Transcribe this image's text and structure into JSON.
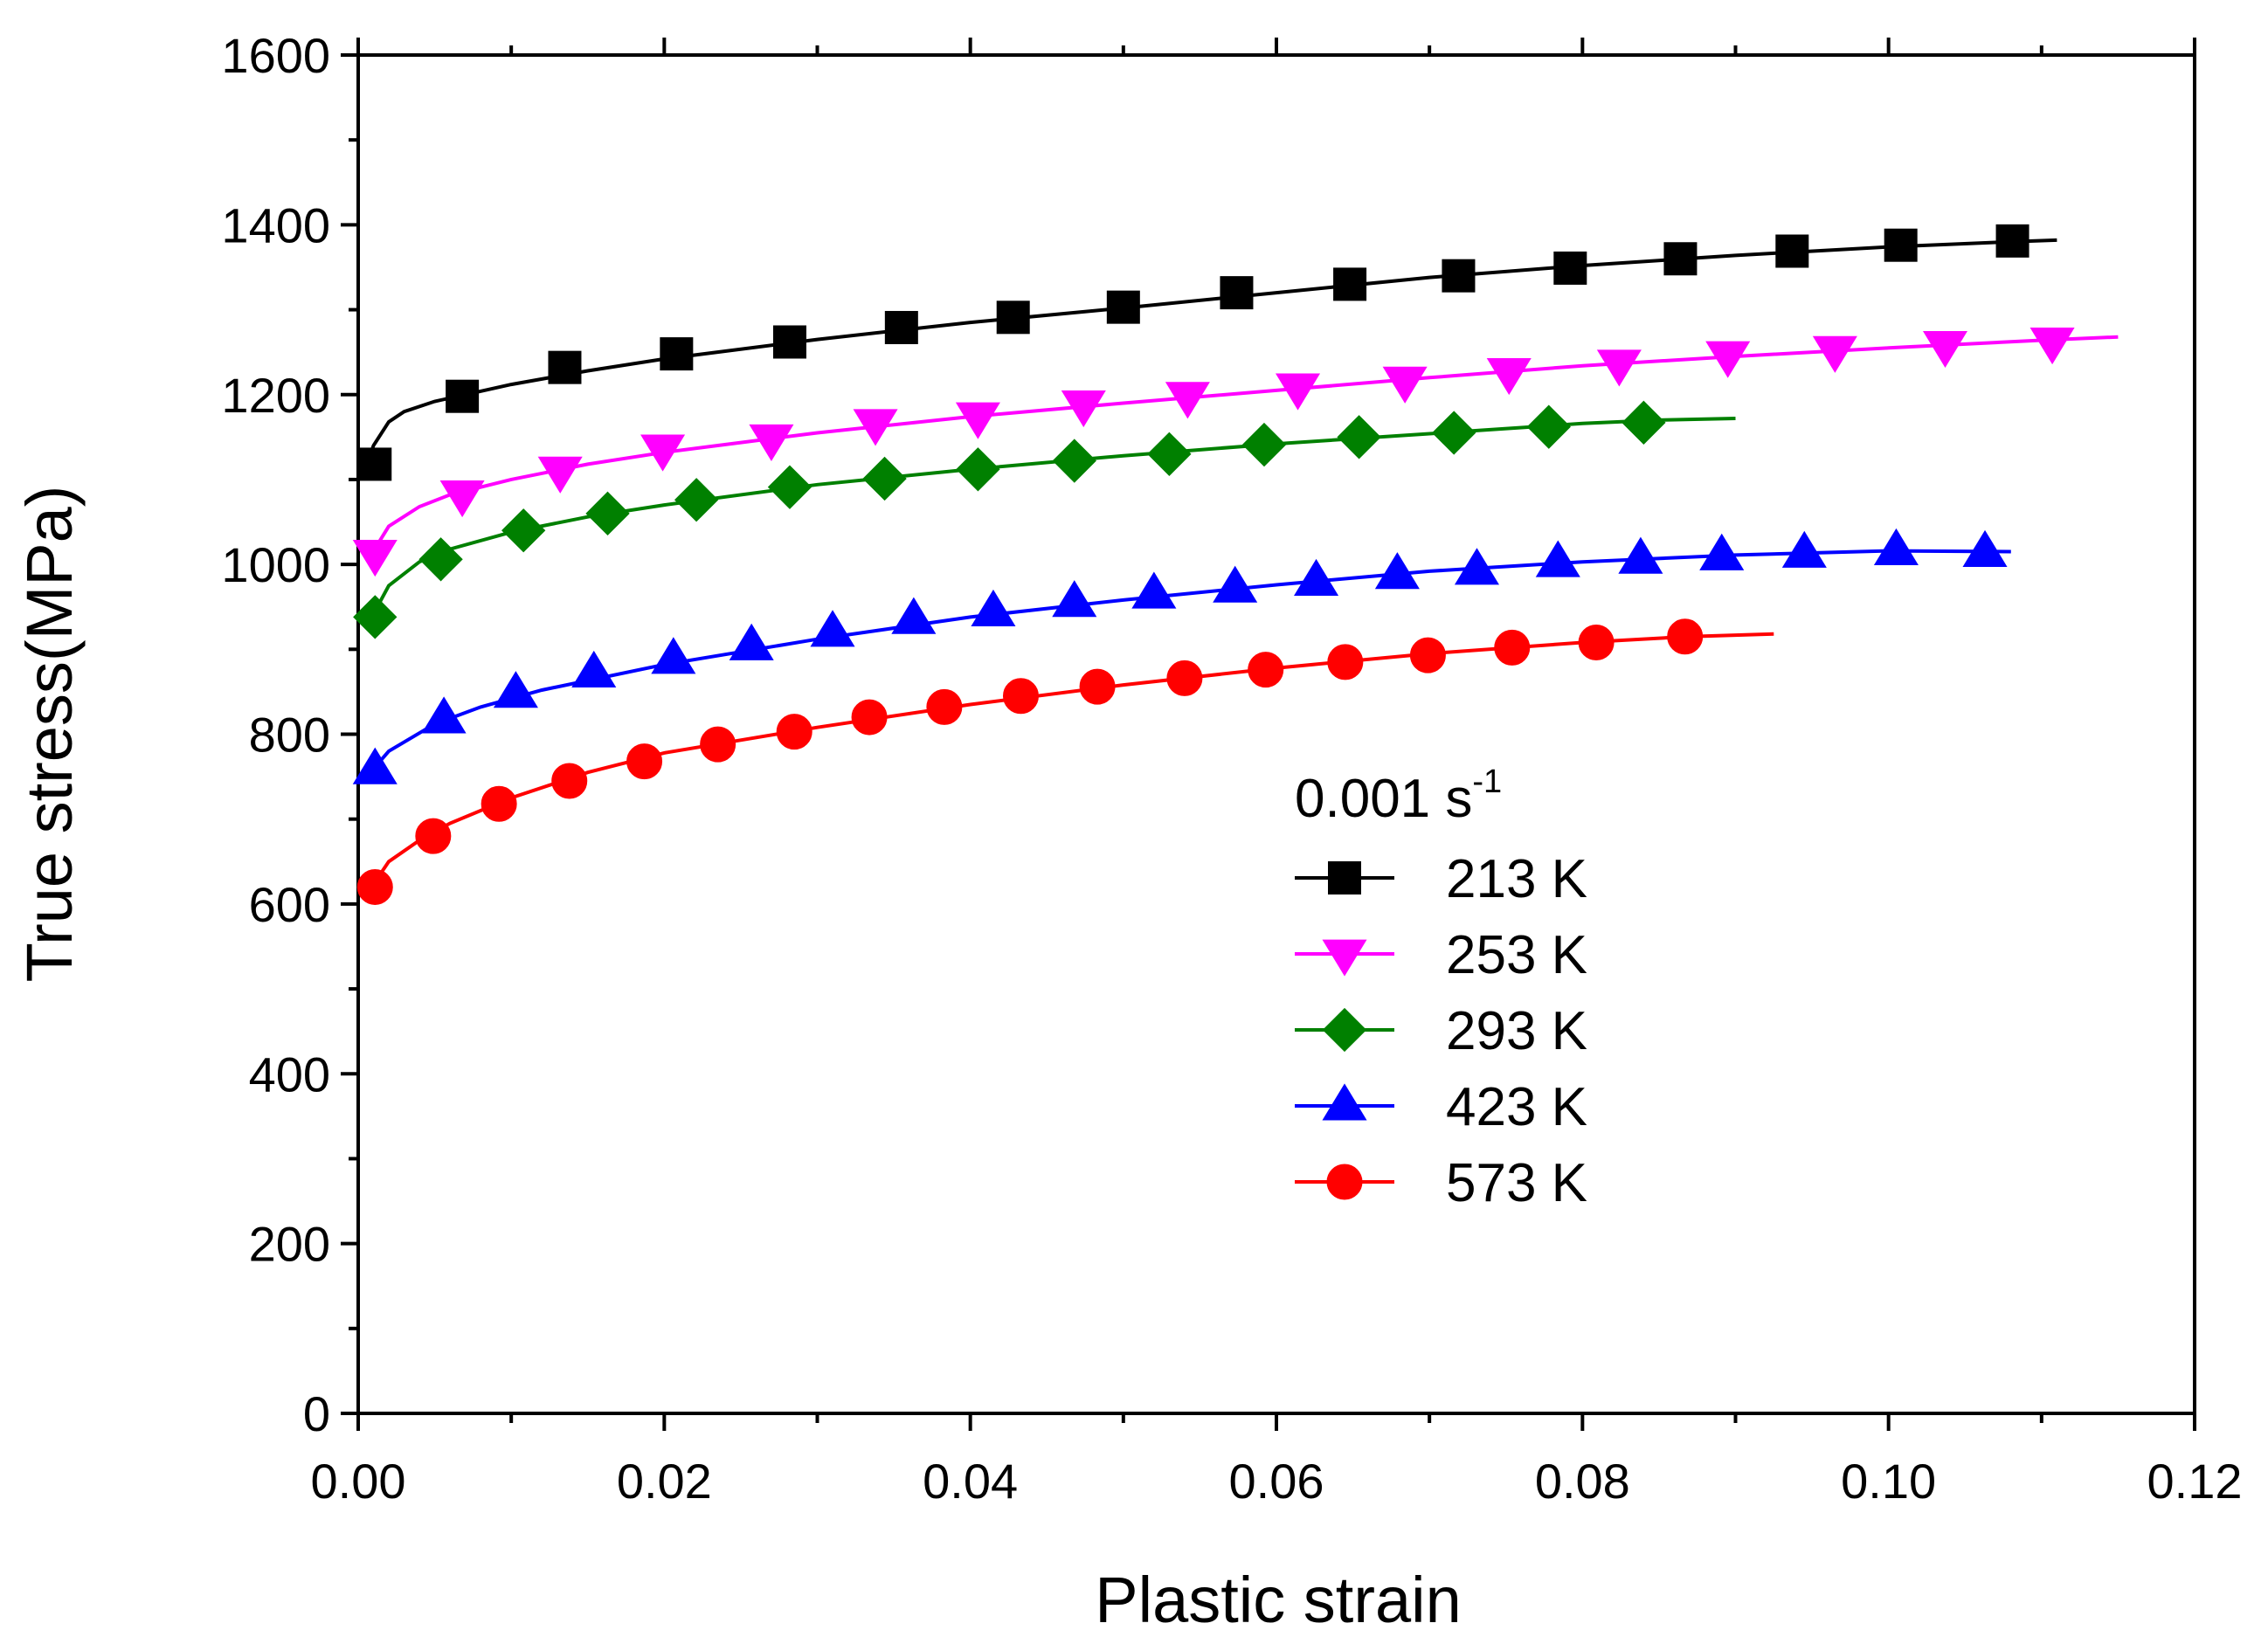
{
  "chart_data": {
    "type": "line",
    "xlabel": "Plastic strain",
    "ylabel": "True stress(MPa)",
    "xlim": [
      0,
      0.12
    ],
    "ylim": [
      0,
      1600
    ],
    "xticks": [
      "0.00",
      "0.02",
      "0.04",
      "0.06",
      "0.08",
      "0.10",
      "0.12"
    ],
    "yticks": [
      "0",
      "200",
      "400",
      "600",
      "800",
      "1000",
      "1200",
      "1400",
      "1600"
    ],
    "legend": {
      "title_main": "0.001 s",
      "title_sup": "-1",
      "placement": "lower-center"
    },
    "series": [
      {
        "name": "213 K",
        "color": "#000000",
        "marker": "square",
        "line_x": [
          0.0005,
          0.001,
          0.002,
          0.003,
          0.005,
          0.007,
          0.01,
          0.015,
          0.02,
          0.03,
          0.04,
          0.05,
          0.06,
          0.07,
          0.08,
          0.09,
          0.1,
          0.108,
          0.111
        ],
        "line_y": [
          1115,
          1140,
          1168,
          1180,
          1192,
          1200,
          1212,
          1228,
          1242,
          1265,
          1285,
          1302,
          1320,
          1338,
          1352,
          1364,
          1374,
          1380,
          1382
        ],
        "marker_x": [
          0.0011,
          0.0068,
          0.0135,
          0.0208,
          0.0282,
          0.0355,
          0.0428,
          0.05,
          0.0574,
          0.0648,
          0.0719,
          0.0792,
          0.0864,
          0.0937,
          0.1008,
          0.1081
        ],
        "marker_y": [
          1118,
          1198,
          1232,
          1248,
          1262,
          1279,
          1291,
          1303,
          1320,
          1330,
          1340,
          1349,
          1360,
          1369,
          1376,
          1381
        ]
      },
      {
        "name": "253 K",
        "color": "#FF00FF",
        "marker": "triangle-down",
        "line_x": [
          0.0008,
          0.002,
          0.004,
          0.006,
          0.01,
          0.015,
          0.02,
          0.03,
          0.04,
          0.05,
          0.06,
          0.07,
          0.08,
          0.09,
          0.1,
          0.11,
          0.115
        ],
        "line_y": [
          1010,
          1045,
          1068,
          1082,
          1100,
          1118,
          1132,
          1155,
          1174,
          1190,
          1205,
          1220,
          1234,
          1245,
          1255,
          1264,
          1268
        ],
        "marker_x": [
          0.0011,
          0.0068,
          0.0132,
          0.0199,
          0.027,
          0.0338,
          0.0405,
          0.0474,
          0.0542,
          0.0614,
          0.0684,
          0.0752,
          0.0824,
          0.0895,
          0.0965,
          0.1037,
          0.1107
        ],
        "marker_y": [
          1012,
          1082,
          1110,
          1136,
          1148,
          1166,
          1174,
          1188,
          1198,
          1208,
          1216,
          1226,
          1236,
          1246,
          1252,
          1258,
          1262
        ]
      },
      {
        "name": "293 K",
        "color": "#008000",
        "marker": "diamond",
        "line_x": [
          0.0008,
          0.002,
          0.004,
          0.006,
          0.01,
          0.015,
          0.02,
          0.03,
          0.04,
          0.05,
          0.06,
          0.07,
          0.08,
          0.085,
          0.09
        ],
        "line_y": [
          935,
          975,
          1003,
          1018,
          1038,
          1056,
          1070,
          1094,
          1112,
          1128,
          1142,
          1154,
          1166,
          1170,
          1172
        ],
        "marker_x": [
          0.0011,
          0.0054,
          0.0108,
          0.0163,
          0.0221,
          0.0282,
          0.0344,
          0.0405,
          0.0468,
          0.053,
          0.0592,
          0.0654,
          0.0716,
          0.0778,
          0.084
        ],
        "marker_y": [
          938,
          1006,
          1040,
          1060,
          1076,
          1091,
          1101,
          1112,
          1122,
          1130,
          1141,
          1150,
          1155,
          1162,
          1167
        ]
      },
      {
        "name": "423 K",
        "color": "#0000FF",
        "marker": "triangle-up",
        "line_x": [
          0.0008,
          0.002,
          0.005,
          0.008,
          0.012,
          0.02,
          0.03,
          0.04,
          0.05,
          0.06,
          0.07,
          0.08,
          0.09,
          0.1,
          0.108
        ],
        "line_y": [
          755,
          780,
          812,
          832,
          852,
          882,
          912,
          938,
          958,
          976,
          992,
          1003,
          1011,
          1016,
          1015
        ],
        "marker_x": [
          0.0011,
          0.0056,
          0.0103,
          0.0154,
          0.0206,
          0.0257,
          0.031,
          0.0363,
          0.0415,
          0.0468,
          0.052,
          0.0573,
          0.0626,
          0.0679,
          0.0731,
          0.0784,
          0.0838,
          0.0891,
          0.0945,
          0.1005,
          0.1063
        ],
        "marker_y": [
          758,
          818,
          848,
          872,
          888,
          904,
          920,
          935,
          944,
          955,
          965,
          972,
          980,
          988,
          993,
          1002,
          1006,
          1010,
          1013,
          1016,
          1014
        ]
      },
      {
        "name": "573 K",
        "color": "#FF0000",
        "marker": "circle",
        "line_x": [
          0.0008,
          0.002,
          0.004,
          0.006,
          0.01,
          0.015,
          0.02,
          0.03,
          0.04,
          0.05,
          0.06,
          0.07,
          0.08,
          0.087,
          0.0925
        ],
        "line_y": [
          618,
          650,
          675,
          695,
          725,
          755,
          778,
          808,
          835,
          858,
          878,
          895,
          908,
          915,
          918
        ],
        "marker_x": [
          0.0011,
          0.0049,
          0.0092,
          0.0138,
          0.0187,
          0.0235,
          0.0285,
          0.0334,
          0.0383,
          0.0433,
          0.0483,
          0.054,
          0.0593,
          0.0645,
          0.0699,
          0.0754,
          0.0809,
          0.0867
        ],
        "marker_y": [
          620,
          680,
          718,
          745,
          768,
          788,
          803,
          820,
          832,
          845,
          856,
          866,
          876,
          885,
          893,
          902,
          908,
          915
        ]
      }
    ]
  }
}
